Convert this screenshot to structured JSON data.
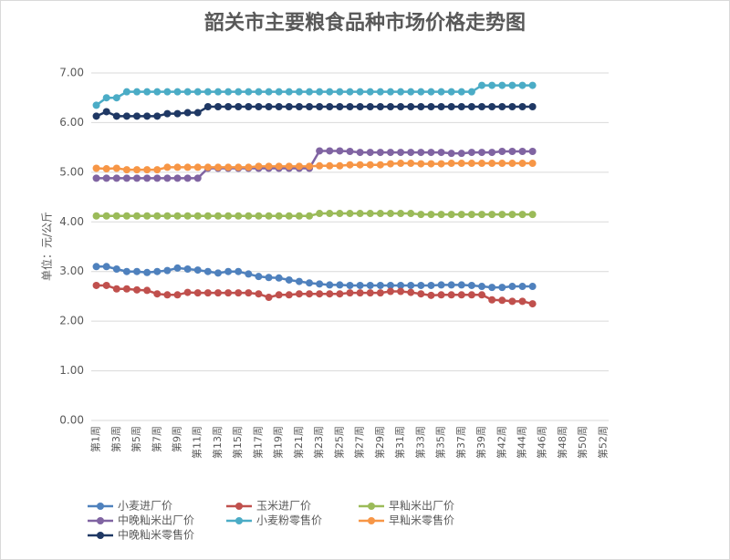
{
  "chart_data": {
    "type": "line",
    "title": "韶关市主要粮食品种市场价格走势图",
    "y_label": "单位：元/公斤",
    "categories": [
      "第1周",
      null,
      "第3周",
      null,
      "第5周",
      null,
      "第7周",
      null,
      "第9周",
      null,
      "第11周",
      null,
      "第13周",
      null,
      "第15周",
      null,
      "第17周",
      null,
      "第19周",
      null,
      "第21周",
      null,
      "第23周",
      null,
      "第25周",
      null,
      "第27周",
      null,
      "第29周",
      null,
      "第31周",
      null,
      "第33周",
      null,
      "第35周",
      null,
      "第37周",
      null,
      "第39周",
      null,
      "第42周",
      null,
      "第44周",
      null,
      "第46周",
      null,
      "第48周",
      null,
      "第50周",
      null,
      "第52周"
    ],
    "ylim": [
      0,
      7
    ],
    "yticks": [
      {
        "value": 0,
        "label": "0.00"
      },
      {
        "value": 1,
        "label": "1.00"
      },
      {
        "value": 2,
        "label": "2.00"
      },
      {
        "value": 3,
        "label": "3.00"
      },
      {
        "value": 4,
        "label": "4.00"
      },
      {
        "value": 5,
        "label": "5.00"
      },
      {
        "value": 6,
        "label": "6.00"
      },
      {
        "value": 7,
        "label": "7.00"
      }
    ],
    "grid": true,
    "legend": "bottom",
    "series": [
      {
        "name": "小麦进厂价",
        "color": "#4f81bd",
        "values": [
          3.1,
          3.1,
          3.05,
          3.0,
          3.0,
          2.98,
          3.0,
          3.02,
          3.07,
          3.05,
          3.03,
          3.0,
          2.97,
          3.0,
          3.0,
          2.95,
          2.9,
          2.88,
          2.87,
          2.83,
          2.8,
          2.77,
          2.75,
          2.73,
          2.73,
          2.72,
          2.72,
          2.72,
          2.72,
          2.72,
          2.72,
          2.72,
          2.72,
          2.72,
          2.73,
          2.73,
          2.73,
          2.72,
          2.7,
          2.68,
          2.68,
          2.7,
          2.7,
          2.7,
          null,
          null,
          null,
          null,
          null,
          null,
          null
        ]
      },
      {
        "name": "玉米进厂价",
        "color": "#c0504d",
        "values": [
          2.72,
          2.72,
          2.65,
          2.65,
          2.63,
          2.62,
          2.55,
          2.53,
          2.53,
          2.58,
          2.57,
          2.57,
          2.57,
          2.57,
          2.57,
          2.57,
          2.55,
          2.48,
          2.53,
          2.53,
          2.55,
          2.55,
          2.55,
          2.55,
          2.55,
          2.57,
          2.57,
          2.57,
          2.57,
          2.6,
          2.6,
          2.58,
          2.55,
          2.52,
          2.53,
          2.53,
          2.53,
          2.53,
          2.53,
          2.43,
          2.42,
          2.4,
          2.4,
          2.35,
          null,
          null,
          null,
          null,
          null,
          null,
          null
        ]
      },
      {
        "name": "早籼米出厂价",
        "color": "#9bbb59",
        "values": [
          4.12,
          4.12,
          4.12,
          4.12,
          4.12,
          4.12,
          4.12,
          4.12,
          4.12,
          4.12,
          4.12,
          4.12,
          4.12,
          4.12,
          4.12,
          4.12,
          4.12,
          4.12,
          4.12,
          4.12,
          4.12,
          4.12,
          4.17,
          4.17,
          4.17,
          4.17,
          4.17,
          4.17,
          4.17,
          4.17,
          4.17,
          4.17,
          4.15,
          4.15,
          4.15,
          4.15,
          4.15,
          4.15,
          4.15,
          4.15,
          4.15,
          4.15,
          4.15,
          4.15,
          null,
          null,
          null,
          null,
          null,
          null,
          null
        ]
      },
      {
        "name": "中晚籼米出厂价",
        "color": "#8064a2",
        "values": [
          4.88,
          4.88,
          4.88,
          4.88,
          4.88,
          4.88,
          4.88,
          4.88,
          4.88,
          4.88,
          4.88,
          5.08,
          5.08,
          5.08,
          5.08,
          5.08,
          5.08,
          5.08,
          5.08,
          5.08,
          5.08,
          5.08,
          5.43,
          5.43,
          5.43,
          5.42,
          5.4,
          5.4,
          5.4,
          5.4,
          5.4,
          5.4,
          5.4,
          5.4,
          5.4,
          5.38,
          5.38,
          5.4,
          5.4,
          5.4,
          5.42,
          5.42,
          5.42,
          5.42,
          null,
          null,
          null,
          null,
          null,
          null,
          null
        ]
      },
      {
        "name": "小麦粉零售价",
        "color": "#4bacc6",
        "values": [
          6.35,
          6.5,
          6.5,
          6.62,
          6.62,
          6.62,
          6.62,
          6.62,
          6.62,
          6.62,
          6.62,
          6.62,
          6.62,
          6.62,
          6.62,
          6.62,
          6.62,
          6.62,
          6.62,
          6.62,
          6.62,
          6.62,
          6.62,
          6.62,
          6.62,
          6.62,
          6.62,
          6.62,
          6.62,
          6.62,
          6.62,
          6.62,
          6.62,
          6.62,
          6.62,
          6.62,
          6.62,
          6.62,
          6.75,
          6.75,
          6.75,
          6.75,
          6.75,
          6.75,
          null,
          null,
          null,
          null,
          null,
          null,
          null
        ]
      },
      {
        "name": "早籼米零售价",
        "color": "#f79646",
        "values": [
          5.08,
          5.07,
          5.08,
          5.05,
          5.05,
          5.05,
          5.05,
          5.1,
          5.1,
          5.1,
          5.1,
          5.1,
          5.1,
          5.1,
          5.1,
          5.1,
          5.12,
          5.12,
          5.12,
          5.12,
          5.12,
          5.12,
          5.13,
          5.13,
          5.13,
          5.15,
          5.15,
          5.15,
          5.15,
          5.17,
          5.18,
          5.18,
          5.17,
          5.17,
          5.17,
          5.18,
          5.18,
          5.18,
          5.18,
          5.18,
          5.18,
          5.18,
          5.18,
          5.18,
          null,
          null,
          null,
          null,
          null,
          null,
          null
        ]
      },
      {
        "name": "中晚籼米零售价",
        "color": "#1f3864",
        "values": [
          6.13,
          6.22,
          6.13,
          6.13,
          6.13,
          6.13,
          6.13,
          6.18,
          6.18,
          6.2,
          6.2,
          6.32,
          6.32,
          6.32,
          6.32,
          6.32,
          6.32,
          6.32,
          6.32,
          6.32,
          6.32,
          6.32,
          6.32,
          6.32,
          6.32,
          6.32,
          6.32,
          6.32,
          6.32,
          6.32,
          6.32,
          6.32,
          6.32,
          6.32,
          6.32,
          6.32,
          6.32,
          6.32,
          6.32,
          6.32,
          6.32,
          6.32,
          6.32,
          6.32,
          null,
          null,
          null,
          null,
          null,
          null,
          null
        ]
      }
    ]
  }
}
